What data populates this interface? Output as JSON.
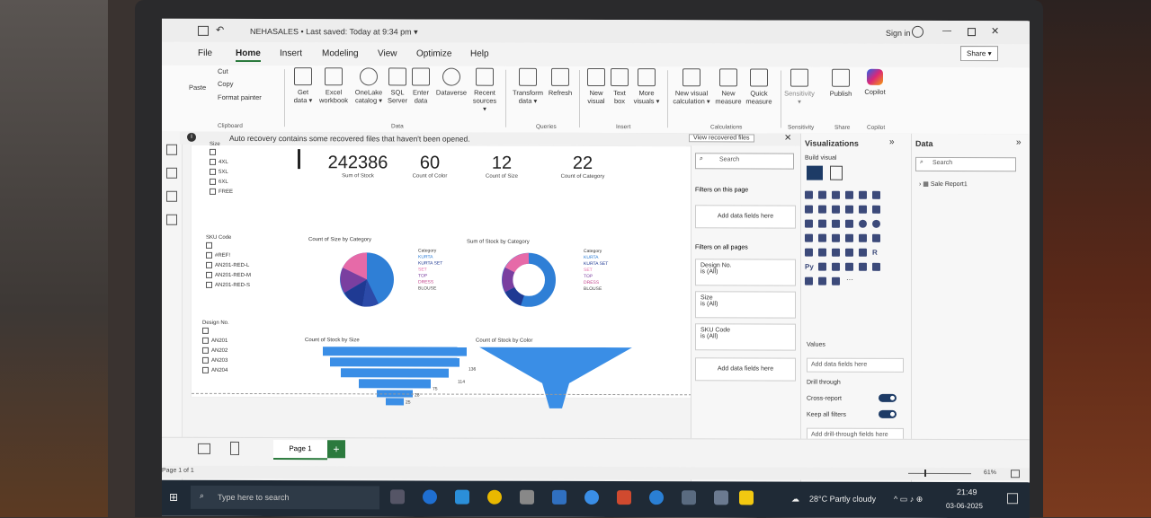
{
  "window": {
    "title": "NEHASALES • Last saved: Today at 9:34 pm ▾",
    "sign_in": "Sign in",
    "share": "Share ▾"
  },
  "menu": [
    "File",
    "Home",
    "Insert",
    "Modeling",
    "View",
    "Optimize",
    "Help"
  ],
  "ribbon": {
    "clipboard": {
      "cut": "Cut",
      "copy": "Copy",
      "paste": "Paste",
      "format_painter": "Format painter",
      "label": "Clipboard"
    },
    "data": {
      "get_data": "Get data ▾",
      "excel": "Excel workbook",
      "onelake": "OneLake catalog ▾",
      "sql": "SQL Server",
      "enter": "Enter data",
      "dataverse": "Dataverse",
      "recent": "Recent sources ▾",
      "label": "Data"
    },
    "queries": {
      "transform": "Transform data ▾",
      "refresh": "Refresh",
      "label": "Queries"
    },
    "insert": {
      "new_visual": "New visual",
      "text_box": "Text box",
      "more_visuals": "More visuals ▾",
      "label": "Insert"
    },
    "calculations": {
      "new_calc": "New visual calculation ▾",
      "new_measure": "New measure",
      "quick_measure": "Quick measure",
      "label": "Calculations"
    },
    "sensitivity": {
      "btn": "Sensitivity ▾",
      "label": "Sensitivity"
    },
    "share": {
      "publish": "Publish",
      "label": "Share"
    },
    "copilot": {
      "btn": "Copilot",
      "label": "Copilot"
    }
  },
  "infobar": {
    "text": "Auto recovery contains some recovered files that haven't been opened.",
    "action": "View recovered files"
  },
  "slicers": {
    "size": {
      "title": "Size",
      "items": [
        "4XL",
        "5XL",
        "6XL",
        "FREE"
      ]
    },
    "sku": {
      "title": "SKU Code",
      "items": [
        "#REF!",
        "AN201-RED-L",
        "AN201-RED-M",
        "AN201-RED-S"
      ]
    },
    "design": {
      "title": "Design No.",
      "items": [
        "AN201",
        "AN202",
        "AN203",
        "AN204"
      ]
    }
  },
  "kpis": [
    {
      "value": "242386",
      "label": "Sum of Stock"
    },
    {
      "value": "60",
      "label": "Count of Color"
    },
    {
      "value": "12",
      "label": "Count of Size"
    },
    {
      "value": "22",
      "label": "Count of Category"
    }
  ],
  "charts": {
    "pie": {
      "title": "Count of Size by Category",
      "legend_title": "Category",
      "legend": [
        "KURTA",
        "KURTA SET",
        "SET",
        "TOP",
        "DRESS",
        "BLOUSE"
      ]
    },
    "donut": {
      "title": "Sum of Stock by Category",
      "legend_title": "Category",
      "legend": [
        "KURTA",
        "KURTA SET",
        "SET",
        "TOP",
        "DRESS",
        "BLOUSE"
      ]
    },
    "funnel_size": {
      "title": "Count of Stock by Size",
      "values_shown": [
        "136",
        "114",
        "75",
        "28",
        "25"
      ]
    },
    "funnel_color": {
      "title": "Count of Stock by Color"
    }
  },
  "filters": {
    "search_placeholder": "Search",
    "on_page": "Filters on this page",
    "add_fields": "Add data fields here",
    "on_all_pages": "Filters on all pages",
    "cards": [
      {
        "name": "Design No.",
        "value": "is (All)"
      },
      {
        "name": "Size",
        "value": "is (All)"
      },
      {
        "name": "SKU Code",
        "value": "is (All)"
      }
    ],
    "add_fields_bottom": "Add data fields here"
  },
  "visualizations": {
    "title": "Visualizations",
    "build": "Build visual",
    "values": "Values",
    "add_fields": "Add data fields here",
    "drill": "Drill through",
    "cross_report": "Cross-report",
    "cross_report_state": "On",
    "keep_filters": "Keep all filters",
    "keep_filters_state": "On",
    "add_drill": "Add drill-through fields here"
  },
  "data_pane": {
    "title": "Data",
    "search_placeholder": "Search",
    "table": "Sale Report1"
  },
  "pages": {
    "page1": "Page 1",
    "add": "+"
  },
  "status": {
    "page_of": "Page 1 of 1",
    "zoom": "61%"
  },
  "taskbar": {
    "search_placeholder": "Type here to search",
    "weather": "28°C  Partly cloudy",
    "time": "21:49",
    "date": "03-06-2025"
  },
  "colors": {
    "accent": "#2b7a3d",
    "chart_blue": "#2f7fd6",
    "funnel_blue": "#3a8ee6",
    "taskbar": "#1f2a36"
  }
}
